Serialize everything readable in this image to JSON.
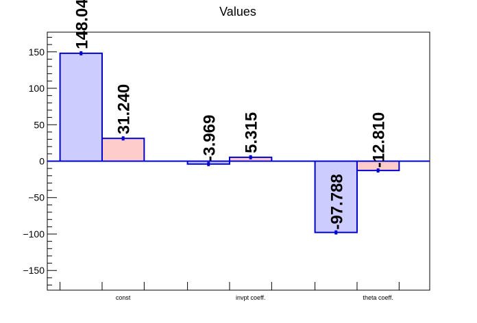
{
  "chart_data": {
    "type": "bar",
    "title": "Values",
    "xlabel": "",
    "ylabel": "",
    "categories": [
      "const",
      "invpt coeff.",
      "theta coeff."
    ],
    "ylim": [
      -177,
      177
    ],
    "yticks": [
      -150,
      -100,
      -50,
      0,
      50,
      100,
      150
    ],
    "ytick_labels": [
      "−150",
      "−100",
      "−50",
      "0",
      "50",
      "100",
      "150"
    ],
    "grid": false,
    "legend": "none",
    "series": [
      {
        "values": [
          148.04,
          -3.969,
          -97.788
        ],
        "labels": [
          "148.04",
          "-3.969",
          "-97.788"
        ],
        "fill": "#ccccff",
        "stroke": "#0000cc"
      },
      {
        "values": [
          31.24,
          5.315,
          -12.81
        ],
        "labels": [
          "31.240",
          "5.315",
          "-12.810"
        ],
        "fill": "#ffcccc",
        "stroke": "#0000cc"
      }
    ],
    "error_marker_color": "#0000cc",
    "zero_line_color": "#0000cc"
  }
}
